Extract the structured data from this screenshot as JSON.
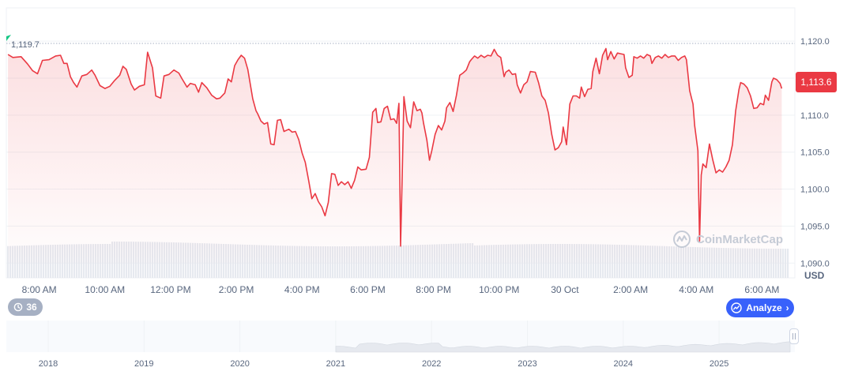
{
  "chart_data": {
    "type": "line",
    "currency_label": "USD",
    "open_label": "1,119.7",
    "current_label": "1,113.6",
    "y_ticks": [
      1090.0,
      1095.0,
      1100.0,
      1105.0,
      1110.0,
      1115.0,
      1120.0
    ],
    "y_tick_labels": [
      "1,090.0",
      "1,095.0",
      "1,100.0",
      "1,105.0",
      "1,110.0",
      "1,115.0",
      "1,120.0"
    ],
    "ylim": [
      1088.0,
      1124.5
    ],
    "x_ticks": [
      "8:00 AM",
      "10:00 AM",
      "12:00 PM",
      "2:00 PM",
      "4:00 PM",
      "6:00 PM",
      "8:00 PM",
      "10:00 PM",
      "30 Oct",
      "2:00 AM",
      "4:00 AM",
      "6:00 AM"
    ],
    "x_tick_hours": [
      1.0,
      3.0,
      5.0,
      7.0,
      9.0,
      11.0,
      13.0,
      15.0,
      17.0,
      19.0,
      21.0,
      23.0
    ],
    "x_range_hours": [
      0,
      24.0
    ],
    "colors": {
      "line": "#ea3943",
      "badge": "#ea3943",
      "analyze": "#3861fb",
      "volume": "#e6e9ef",
      "navigator": "#dfe3ea"
    },
    "series": [
      {
        "values": [
          [
            0.05,
            1118.2
          ],
          [
            0.2,
            1117.8
          ],
          [
            0.45,
            1117.9
          ],
          [
            0.65,
            1116.9
          ],
          [
            0.8,
            1116.0
          ],
          [
            0.95,
            1115.6
          ],
          [
            1.1,
            1117.4
          ],
          [
            1.3,
            1117.5
          ],
          [
            1.5,
            1118.0
          ],
          [
            1.65,
            1118.1
          ],
          [
            1.75,
            1117.0
          ],
          [
            1.85,
            1117.0
          ],
          [
            1.95,
            1115.2
          ],
          [
            2.05,
            1114.4
          ],
          [
            2.15,
            1113.8
          ],
          [
            2.3,
            1115.3
          ],
          [
            2.45,
            1115.5
          ],
          [
            2.6,
            1116.1
          ],
          [
            2.7,
            1115.4
          ],
          [
            2.85,
            1114.0
          ],
          [
            3.0,
            1113.6
          ],
          [
            3.15,
            1113.9
          ],
          [
            3.3,
            1114.7
          ],
          [
            3.45,
            1115.4
          ],
          [
            3.55,
            1116.6
          ],
          [
            3.65,
            1116.2
          ],
          [
            3.8,
            1114.2
          ],
          [
            3.9,
            1113.4
          ],
          [
            4.05,
            1113.9
          ],
          [
            4.2,
            1114.1
          ],
          [
            4.3,
            1118.5
          ],
          [
            4.45,
            1116.4
          ],
          [
            4.55,
            1112.6
          ],
          [
            4.7,
            1112.3
          ],
          [
            4.8,
            1115.3
          ],
          [
            4.95,
            1115.5
          ],
          [
            5.1,
            1116.1
          ],
          [
            5.25,
            1115.7
          ],
          [
            5.35,
            1114.9
          ],
          [
            5.5,
            1113.8
          ],
          [
            5.6,
            1114.3
          ],
          [
            5.75,
            1114.1
          ],
          [
            5.85,
            1113.1
          ],
          [
            5.95,
            1114.4
          ],
          [
            6.1,
            1113.7
          ],
          [
            6.25,
            1112.7
          ],
          [
            6.4,
            1112.2
          ],
          [
            6.5,
            1112.3
          ],
          [
            6.65,
            1113.0
          ],
          [
            6.75,
            1114.9
          ],
          [
            6.85,
            1114.5
          ],
          [
            6.95,
            1116.7
          ],
          [
            7.05,
            1117.5
          ],
          [
            7.15,
            1118.1
          ],
          [
            7.25,
            1117.7
          ],
          [
            7.35,
            1116.2
          ],
          [
            7.5,
            1112.2
          ],
          [
            7.6,
            1110.6
          ],
          [
            7.65,
            1110.2
          ],
          [
            7.75,
            1109.2
          ],
          [
            7.85,
            1108.8
          ],
          [
            7.95,
            1109.0
          ],
          [
            8.05,
            1106.1
          ],
          [
            8.15,
            1106.0
          ],
          [
            8.25,
            1109.3
          ],
          [
            8.35,
            1109.4
          ],
          [
            8.45,
            1107.8
          ],
          [
            8.6,
            1108.1
          ],
          [
            8.7,
            1107.7
          ],
          [
            8.8,
            1107.8
          ],
          [
            8.9,
            1106.7
          ],
          [
            9.0,
            1104.9
          ],
          [
            9.1,
            1103.6
          ],
          [
            9.2,
            1101.2
          ],
          [
            9.3,
            1098.7
          ],
          [
            9.4,
            1099.4
          ],
          [
            9.5,
            1098.3
          ],
          [
            9.6,
            1097.6
          ],
          [
            9.7,
            1096.4
          ],
          [
            9.8,
            1098.2
          ],
          [
            9.9,
            1102.1
          ],
          [
            10.0,
            1102.0
          ],
          [
            10.1,
            1100.5
          ],
          [
            10.2,
            1101.0
          ],
          [
            10.3,
            1100.6
          ],
          [
            10.4,
            1101.0
          ],
          [
            10.5,
            1100.1
          ],
          [
            10.6,
            1101.2
          ],
          [
            10.7,
            1103.0
          ],
          [
            10.8,
            1102.6
          ],
          [
            10.95,
            1102.7
          ],
          [
            11.05,
            1104.3
          ],
          [
            11.15,
            1110.4
          ],
          [
            11.25,
            1110.9
          ],
          [
            11.3,
            1109.0
          ],
          [
            11.4,
            1109.1
          ],
          [
            11.5,
            1110.9
          ],
          [
            11.6,
            1111.2
          ],
          [
            11.7,
            1109.4
          ],
          [
            11.8,
            1109.5
          ],
          [
            11.88,
            1108.9
          ],
          [
            11.95,
            1111.6
          ],
          [
            12.0,
            1092.3
          ],
          [
            12.05,
            1102.0
          ],
          [
            12.1,
            1112.5
          ],
          [
            12.2,
            1109.2
          ],
          [
            12.3,
            1108.3
          ],
          [
            12.4,
            1111.8
          ],
          [
            12.5,
            1110.6
          ],
          [
            12.6,
            1110.8
          ],
          [
            12.65,
            1110.3
          ],
          [
            12.7,
            1108.9
          ],
          [
            12.8,
            1106.6
          ],
          [
            12.88,
            1103.9
          ],
          [
            12.95,
            1105.2
          ],
          [
            13.05,
            1107.4
          ],
          [
            13.15,
            1108.6
          ],
          [
            13.25,
            1108.0
          ],
          [
            13.35,
            1109.2
          ],
          [
            13.4,
            1111.0
          ],
          [
            13.5,
            1111.7
          ],
          [
            13.6,
            1110.5
          ],
          [
            13.7,
            1112.7
          ],
          [
            13.8,
            1115.4
          ],
          [
            13.9,
            1115.7
          ],
          [
            14.0,
            1116.1
          ],
          [
            14.1,
            1117.2
          ],
          [
            14.15,
            1117.5
          ],
          [
            14.25,
            1118.0
          ],
          [
            14.35,
            1117.7
          ],
          [
            14.45,
            1118.1
          ],
          [
            14.55,
            1117.8
          ],
          [
            14.65,
            1118.1
          ],
          [
            14.75,
            1118.0
          ],
          [
            14.85,
            1118.9
          ],
          [
            14.95,
            1118.1
          ],
          [
            15.05,
            1117.8
          ],
          [
            15.15,
            1115.2
          ],
          [
            15.2,
            1115.8
          ],
          [
            15.3,
            1116.1
          ],
          [
            15.4,
            1115.5
          ],
          [
            15.5,
            1115.6
          ],
          [
            15.55,
            1114.1
          ],
          [
            15.65,
            1113.0
          ],
          [
            15.75,
            1114.1
          ],
          [
            15.85,
            1114.5
          ],
          [
            15.95,
            1115.9
          ],
          [
            16.1,
            1115.8
          ],
          [
            16.2,
            1114.4
          ],
          [
            16.3,
            1112.6
          ],
          [
            16.4,
            1112.0
          ],
          [
            16.5,
            1110.3
          ],
          [
            16.6,
            1107.4
          ],
          [
            16.7,
            1105.3
          ],
          [
            16.8,
            1105.6
          ],
          [
            16.9,
            1106.4
          ],
          [
            16.95,
            1108.4
          ],
          [
            17.05,
            1106.0
          ],
          [
            17.15,
            1111.5
          ],
          [
            17.25,
            1112.6
          ],
          [
            17.35,
            1112.6
          ],
          [
            17.45,
            1112.3
          ],
          [
            17.5,
            1113.8
          ],
          [
            17.6,
            1112.5
          ],
          [
            17.7,
            1113.5
          ],
          [
            17.8,
            1113.6
          ],
          [
            17.85,
            1115.9
          ],
          [
            17.95,
            1117.7
          ],
          [
            18.05,
            1115.6
          ],
          [
            18.15,
            1118.1
          ],
          [
            18.25,
            1119.0
          ],
          [
            18.3,
            1117.5
          ],
          [
            18.4,
            1118.6
          ],
          [
            18.5,
            1117.6
          ],
          [
            18.6,
            1118.4
          ],
          [
            18.7,
            1118.3
          ],
          [
            18.8,
            1118.2
          ],
          [
            18.85,
            1116.4
          ],
          [
            18.95,
            1115.1
          ],
          [
            19.05,
            1115.4
          ],
          [
            19.1,
            1117.9
          ],
          [
            19.2,
            1117.7
          ],
          [
            19.3,
            1118.0
          ],
          [
            19.4,
            1117.7
          ],
          [
            19.5,
            1118.2
          ],
          [
            19.6,
            1118.0
          ],
          [
            19.65,
            1117.0
          ],
          [
            19.75,
            1117.8
          ],
          [
            19.85,
            1118.0
          ],
          [
            19.95,
            1117.7
          ],
          [
            20.05,
            1118.2
          ],
          [
            20.15,
            1117.8
          ],
          [
            20.25,
            1118.0
          ],
          [
            20.35,
            1118.0
          ],
          [
            20.45,
            1117.4
          ],
          [
            20.55,
            1117.8
          ],
          [
            20.65,
            1118.0
          ],
          [
            20.7,
            1117.5
          ],
          [
            20.8,
            1113.3
          ],
          [
            20.9,
            1111.5
          ],
          [
            20.95,
            1108.6
          ],
          [
            21.05,
            1105.2
          ],
          [
            21.1,
            1093.0
          ],
          [
            21.15,
            1101.9
          ],
          [
            21.2,
            1103.4
          ],
          [
            21.3,
            1102.9
          ],
          [
            21.4,
            1106.1
          ],
          [
            21.5,
            1104.0
          ],
          [
            21.6,
            1102.2
          ],
          [
            21.7,
            1102.6
          ],
          [
            21.8,
            1102.3
          ],
          [
            21.9,
            1103.0
          ],
          [
            22.0,
            1103.9
          ],
          [
            22.1,
            1106.0
          ],
          [
            22.2,
            1110.6
          ],
          [
            22.3,
            1113.5
          ],
          [
            22.35,
            1114.4
          ],
          [
            22.45,
            1114.2
          ],
          [
            22.55,
            1113.7
          ],
          [
            22.65,
            1112.6
          ],
          [
            22.75,
            1110.9
          ],
          [
            22.85,
            1111.0
          ],
          [
            22.95,
            1111.6
          ],
          [
            23.05,
            1111.4
          ],
          [
            23.1,
            1112.7
          ],
          [
            23.2,
            1112.0
          ],
          [
            23.3,
            1114.5
          ],
          [
            23.35,
            1115.0
          ],
          [
            23.45,
            1114.8
          ],
          [
            23.55,
            1114.3
          ],
          [
            23.6,
            1113.6
          ]
        ]
      }
    ]
  },
  "controls": {
    "history_count": "36",
    "analyze_label": "Analyze"
  },
  "watermark": {
    "text": "CoinMarketCap"
  },
  "navigator": {
    "year_labels": [
      "2018",
      "2019",
      "2020",
      "2021",
      "2022",
      "2023",
      "2024",
      "2025"
    ]
  }
}
